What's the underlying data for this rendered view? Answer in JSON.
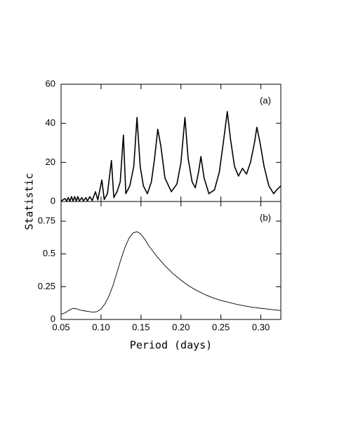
{
  "chart_data": [
    {
      "type": "line",
      "annotation": "(a)",
      "x": [
        0.05,
        0.055,
        0.057,
        0.059,
        0.061,
        0.063,
        0.065,
        0.067,
        0.069,
        0.071,
        0.073,
        0.076,
        0.078,
        0.081,
        0.083,
        0.086,
        0.089,
        0.093,
        0.096,
        0.101,
        0.104,
        0.108,
        0.113,
        0.116,
        0.12,
        0.124,
        0.128,
        0.131,
        0.136,
        0.141,
        0.145,
        0.149,
        0.153,
        0.158,
        0.163,
        0.167,
        0.171,
        0.175,
        0.18,
        0.188,
        0.195,
        0.2,
        0.205,
        0.209,
        0.214,
        0.218,
        0.222,
        0.225,
        0.229,
        0.235,
        0.242,
        0.248,
        0.253,
        0.258,
        0.262,
        0.267,
        0.272,
        0.277,
        0.282,
        0.287,
        0.292,
        0.295,
        0.299,
        0.304,
        0.31,
        0.316,
        0.32,
        0.325
      ],
      "values": [
        0.3,
        1.5,
        0.2,
        2,
        0.2,
        2.5,
        0.3,
        2.5,
        0.3,
        2.5,
        0.3,
        2,
        0.3,
        2,
        0.3,
        2.5,
        0.5,
        5,
        0.8,
        11,
        1,
        4,
        21,
        2,
        5,
        10,
        34,
        4,
        8,
        18,
        43,
        18,
        8,
        4,
        10,
        22,
        37,
        28,
        12,
        5,
        9,
        20,
        43,
        22,
        10,
        7,
        15,
        23,
        12,
        4,
        6,
        15,
        30,
        46,
        32,
        18,
        13,
        17,
        14,
        20,
        30,
        38,
        30,
        18,
        8,
        4,
        6,
        8
      ],
      "color": "#000000",
      "xlim": [
        0.05,
        0.325
      ],
      "xticks": [
        0.05,
        {
          "value": 0.1,
          "label": "0.10"
        },
        0.15,
        {
          "value": 0.2,
          "label": "0.20"
        },
        0.25,
        {
          "value": 0.3,
          "label": "0.30"
        }
      ],
      "ylim": [
        0,
        60
      ],
      "yticks": [
        0,
        20,
        40,
        60
      ]
    },
    {
      "type": "line",
      "annotation": "(b)",
      "xlabel": "Period (days)",
      "ylabel": "Statistic",
      "x": [
        0.05,
        0.055,
        0.06,
        0.065,
        0.07,
        0.075,
        0.08,
        0.085,
        0.09,
        0.095,
        0.1,
        0.105,
        0.11,
        0.115,
        0.12,
        0.125,
        0.13,
        0.135,
        0.14,
        0.145,
        0.15,
        0.155,
        0.16,
        0.17,
        0.18,
        0.19,
        0.2,
        0.21,
        0.22,
        0.23,
        0.24,
        0.25,
        0.26,
        0.27,
        0.28,
        0.29,
        0.3,
        0.31,
        0.325
      ],
      "values": [
        0.04,
        0.05,
        0.07,
        0.085,
        0.08,
        0.07,
        0.065,
        0.06,
        0.055,
        0.06,
        0.08,
        0.12,
        0.18,
        0.26,
        0.36,
        0.46,
        0.55,
        0.62,
        0.66,
        0.67,
        0.65,
        0.61,
        0.56,
        0.48,
        0.41,
        0.35,
        0.3,
        0.255,
        0.22,
        0.19,
        0.165,
        0.145,
        0.13,
        0.115,
        0.103,
        0.093,
        0.085,
        0.078,
        0.068
      ],
      "color": "#000000",
      "xlim": [
        0.05,
        0.325
      ],
      "xticks": [
        0.05,
        {
          "value": 0.1,
          "label": "0.10"
        },
        0.15,
        {
          "value": 0.2,
          "label": "0.20"
        },
        0.25,
        {
          "value": 0.3,
          "label": "0.30"
        }
      ],
      "ylim": [
        0,
        0.9
      ],
      "yticks": [
        0,
        0.25,
        0.5,
        0.75
      ]
    }
  ]
}
